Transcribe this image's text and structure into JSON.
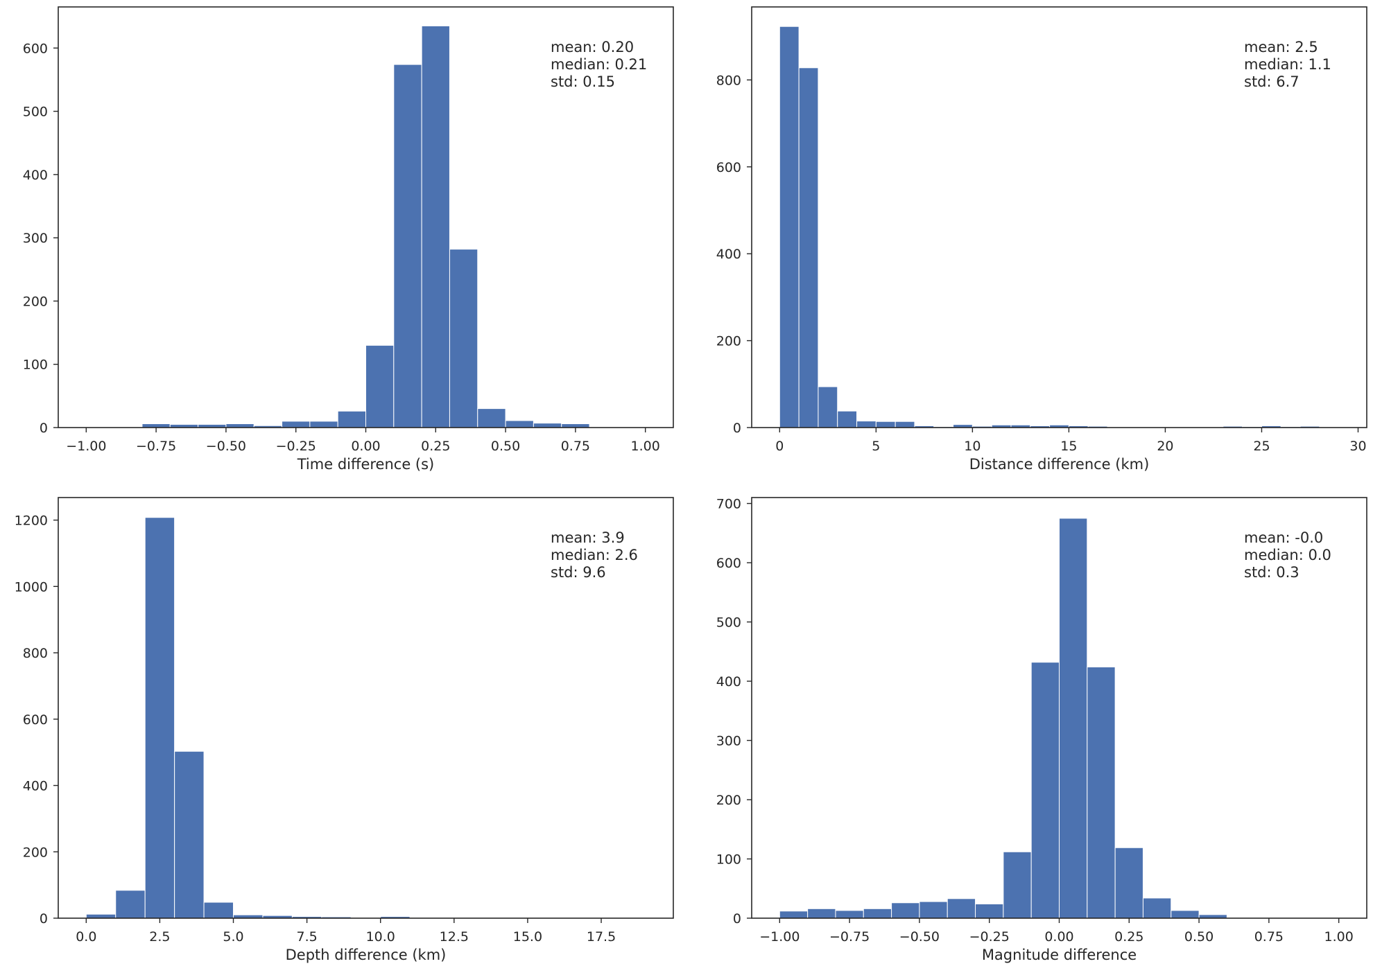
{
  "chart_data": [
    {
      "type": "bar",
      "xlabel": "Time difference (s)",
      "ylabel": "",
      "xlim": [
        -1.1,
        1.1
      ],
      "ylim": [
        0,
        665
      ],
      "xticks": [
        -1.0,
        -0.75,
        -0.5,
        -0.25,
        0.0,
        0.25,
        0.5,
        0.75,
        1.0
      ],
      "xtick_labels": [
        "−1.00",
        "−0.75",
        "−0.50",
        "−0.25",
        "0.00",
        "0.25",
        "0.50",
        "0.75",
        "1.00"
      ],
      "yticks": [
        0,
        100,
        200,
        300,
        400,
        500,
        600
      ],
      "ytick_labels": [
        "0",
        "100",
        "200",
        "300",
        "400",
        "500",
        "600"
      ],
      "bin_edges": [
        -1.0,
        -0.9,
        -0.8,
        -0.7,
        -0.6,
        -0.5,
        -0.4,
        -0.3,
        -0.2,
        -0.1,
        0.0,
        0.1,
        0.2,
        0.3,
        0.4,
        0.5,
        0.6,
        0.7,
        0.8,
        0.9,
        1.0
      ],
      "values": [
        0,
        1,
        6,
        5,
        5,
        6,
        3,
        10,
        10,
        26,
        130,
        574,
        635,
        282,
        30,
        11,
        7,
        6,
        0,
        0
      ],
      "annotation": [
        "mean: 0.20",
        "median: 0.21",
        "std: 0.15"
      ],
      "grid": false
    },
    {
      "type": "bar",
      "xlabel": "Distance difference (km)",
      "ylabel": "",
      "xlim": [
        -1.45,
        30.45
      ],
      "ylim": [
        0,
        968
      ],
      "xticks": [
        0,
        5,
        10,
        15,
        20,
        25,
        30
      ],
      "xtick_labels": [
        "0",
        "5",
        "10",
        "15",
        "20",
        "25",
        "30"
      ],
      "yticks": [
        0,
        200,
        400,
        600,
        800
      ],
      "ytick_labels": [
        "0",
        "200",
        "400",
        "600",
        "800"
      ],
      "bin_edges": [
        0,
        1,
        2,
        3,
        4,
        5,
        6,
        7,
        8,
        9,
        10,
        11,
        12,
        13,
        14,
        15,
        16,
        17,
        18,
        19,
        20,
        21,
        22,
        23,
        24,
        25,
        26,
        27,
        28,
        29
      ],
      "values": [
        923,
        828,
        94,
        38,
        15,
        14,
        14,
        4,
        2,
        7,
        3,
        6,
        6,
        4,
        6,
        4,
        3,
        1,
        1,
        1,
        1,
        1,
        1,
        3,
        2,
        4,
        2,
        3,
        1
      ],
      "annotation": [
        "mean: 2.5",
        "median: 1.1",
        "std: 6.7"
      ],
      "grid": false
    },
    {
      "type": "bar",
      "xlabel": "Depth difference (km)",
      "ylabel": "",
      "xlim": [
        -0.95,
        19.95
      ],
      "ylim": [
        0,
        1268
      ],
      "xticks": [
        0,
        2.5,
        5,
        7.5,
        10,
        12.5,
        15,
        17.5
      ],
      "xtick_labels": [
        "0.0",
        "2.5",
        "5.0",
        "7.5",
        "10.0",
        "12.5",
        "15.0",
        "17.5"
      ],
      "yticks": [
        0,
        200,
        400,
        600,
        800,
        1000,
        1200
      ],
      "ytick_labels": [
        "0",
        "200",
        "400",
        "600",
        "800",
        "1000",
        "1200"
      ],
      "bin_edges": [
        0,
        1,
        2,
        3,
        4,
        5,
        6,
        7,
        8,
        9,
        10,
        11,
        12,
        13,
        14,
        15,
        16,
        17,
        18,
        19
      ],
      "values": [
        12,
        84,
        1208,
        503,
        48,
        10,
        8,
        5,
        4,
        2,
        5,
        2,
        1,
        1,
        1,
        1,
        1,
        1,
        1
      ],
      "annotation": [
        "mean: 3.9",
        "median: 2.6",
        "std: 9.6"
      ],
      "grid": false
    },
    {
      "type": "bar",
      "xlabel": "Magnitude difference",
      "ylabel": "",
      "xlim": [
        -1.1,
        1.1
      ],
      "ylim": [
        0,
        710
      ],
      "xticks": [
        -1.0,
        -0.75,
        -0.5,
        -0.25,
        0.0,
        0.25,
        0.5,
        0.75,
        1.0
      ],
      "xtick_labels": [
        "−1.00",
        "−0.75",
        "−0.50",
        "−0.25",
        "0.00",
        "0.25",
        "0.50",
        "0.75",
        "1.00"
      ],
      "yticks": [
        0,
        100,
        200,
        300,
        400,
        500,
        600,
        700
      ],
      "ytick_labels": [
        "0",
        "100",
        "200",
        "300",
        "400",
        "500",
        "600",
        "700"
      ],
      "bin_edges": [
        -1.0,
        -0.9,
        -0.8,
        -0.7,
        -0.6,
        -0.5,
        -0.4,
        -0.3,
        -0.2,
        -0.1,
        0.0,
        0.1,
        0.2,
        0.3,
        0.4,
        0.5,
        0.6,
        0.7,
        0.8,
        0.9,
        1.0
      ],
      "values": [
        12,
        16,
        13,
        16,
        26,
        28,
        33,
        24,
        112,
        432,
        675,
        424,
        119,
        34,
        13,
        6,
        1,
        1,
        1,
        1
      ],
      "annotation": [
        "mean: -0.0",
        "median: 0.0",
        "std: 0.3"
      ],
      "grid": false
    }
  ],
  "colors": {
    "bar_fill": "#4c72b0",
    "bar_edge": "#ffffff",
    "axes_edge": "#262626",
    "text": "#262626"
  }
}
